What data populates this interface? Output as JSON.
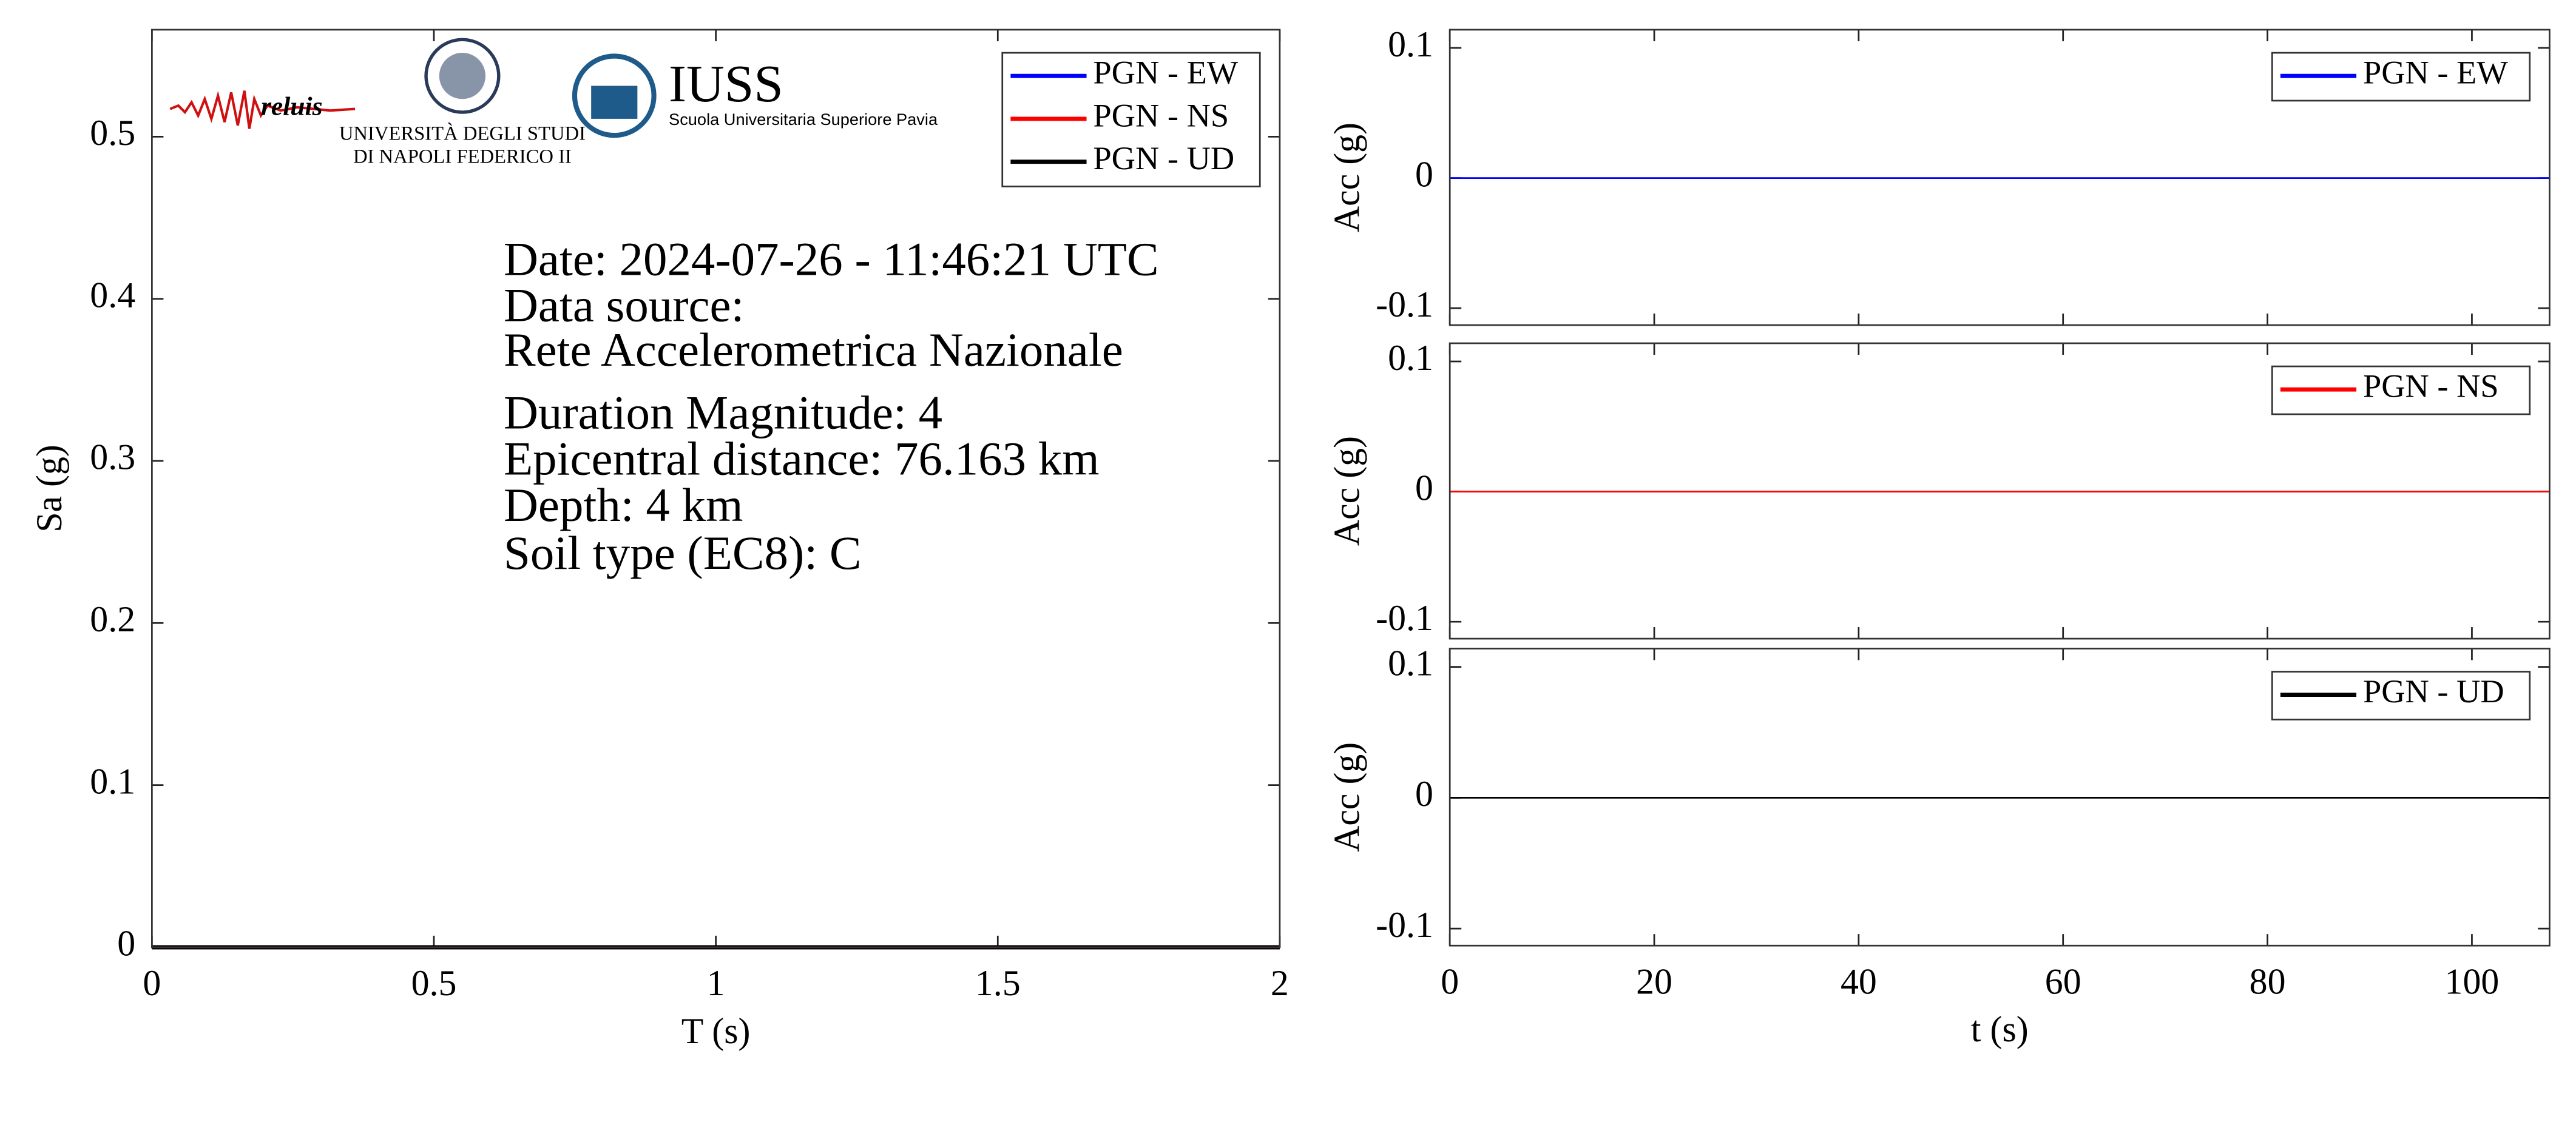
{
  "chart_data": [
    {
      "type": "line",
      "xlabel": "T (s)",
      "ylabel": "Sa (g)",
      "x": [
        0,
        0.5,
        1,
        1.5,
        2
      ],
      "series": [
        {
          "name": "PGN - EW",
          "color": "#0000ff",
          "values": [
            0,
            0,
            0,
            0,
            0
          ]
        },
        {
          "name": "PGN - NS",
          "color": "#ff0000",
          "values": [
            0,
            0,
            0,
            0,
            0
          ]
        },
        {
          "name": "PGN - UD",
          "color": "#000000",
          "values": [
            0,
            0,
            0,
            0,
            0
          ]
        }
      ],
      "xlim": [
        0,
        2
      ],
      "xticks": [
        0,
        0.5,
        1,
        1.5,
        2
      ],
      "ylim": [
        0,
        0.566
      ],
      "yticks": [
        0,
        0.1,
        0.2,
        0.3,
        0.4,
        0.5
      ],
      "legend": "northeast",
      "annotations": [
        "Date: 2024-07-26 - 11:46:21 UTC",
        "Data source:",
        "Rete Accelerometrica Nazionale",
        "Duration Magnitude: 4",
        "Epicentral distance: 76.163 km",
        "Depth: 4 km",
        "Soil type (EC8): C"
      ],
      "logos": [
        "reluis",
        "UNIVERSITÀ DEGLI STUDI",
        "DI NAPOLI FEDERICO II",
        "IUSS",
        "Scuola Universitaria Superiore Pavia"
      ]
    },
    {
      "type": "line",
      "ylabel": "Acc (g)",
      "x": [
        0,
        107.6
      ],
      "series": [
        {
          "name": "PGN - EW",
          "color": "#0000ff",
          "values": [
            0,
            0
          ]
        }
      ],
      "xlim": [
        0,
        107.6
      ],
      "xticks": [
        0,
        20,
        40,
        60,
        80,
        100
      ],
      "ylim": [
        -0.113,
        0.114
      ],
      "yticks": [
        -0.1,
        0,
        0.1
      ],
      "legend": "northeast"
    },
    {
      "type": "line",
      "ylabel": "Acc (g)",
      "x": [
        0,
        107.6
      ],
      "series": [
        {
          "name": "PGN - NS",
          "color": "#ff0000",
          "values": [
            0,
            0
          ]
        }
      ],
      "xlim": [
        0,
        107.6
      ],
      "xticks": [
        0,
        20,
        40,
        60,
        80,
        100
      ],
      "ylim": [
        -0.113,
        0.114
      ],
      "yticks": [
        -0.1,
        0,
        0.1
      ],
      "legend": "northeast"
    },
    {
      "type": "line",
      "xlabel": "t (s)",
      "ylabel": "Acc (g)",
      "x": [
        0,
        107.6
      ],
      "series": [
        {
          "name": "PGN - UD",
          "color": "#000000",
          "values": [
            0,
            0
          ]
        }
      ],
      "xlim": [
        0,
        107.6
      ],
      "xticks": [
        0,
        20,
        40,
        60,
        80,
        100
      ],
      "ylim": [
        -0.113,
        0.114
      ],
      "yticks": [
        -0.1,
        0,
        0.1
      ],
      "legend": "northeast"
    }
  ]
}
